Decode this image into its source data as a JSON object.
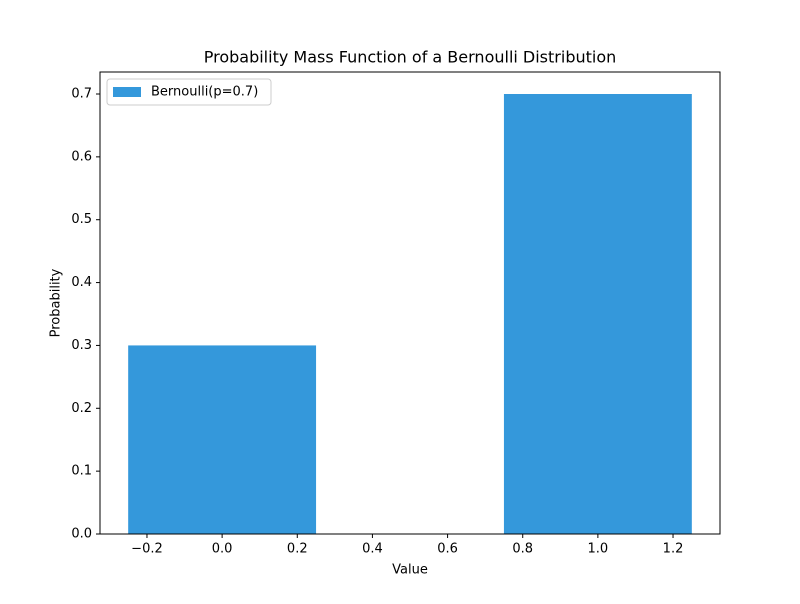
{
  "chart_data": {
    "type": "bar",
    "title": "Probability Mass Function of a Bernoulli Distribution",
    "x_label": "Value",
    "y_label": "Probability",
    "x": [
      0,
      1
    ],
    "bar_width": 0.5,
    "series": [
      {
        "name": "Bernoulli(p=0.7)",
        "color": "#3498db",
        "values": [
          0.3,
          0.7
        ]
      }
    ],
    "xlim": [
      -0.325,
      1.325
    ],
    "xticks": [
      {
        "value": -0.2,
        "label": "−0.2"
      },
      {
        "value": 0,
        "label": "0.0"
      },
      0.2,
      0.4,
      0.6,
      0.8,
      {
        "value": 1,
        "label": "1.0"
      },
      1.2
    ],
    "ylim": [
      0,
      0.735
    ],
    "yticks": [
      {
        "value": 0,
        "label": "0.0"
      },
      0.1,
      0.2,
      0.3,
      0.4,
      0.5,
      0.6,
      0.7
    ],
    "legend": "upper left"
  }
}
